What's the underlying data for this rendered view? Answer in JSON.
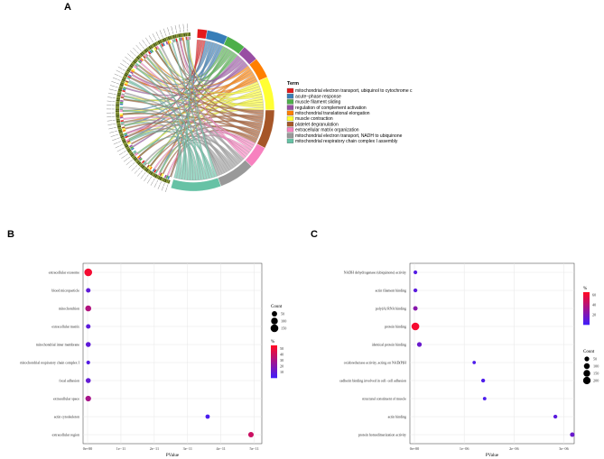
{
  "panel_labels": {
    "a": "A",
    "b": "B",
    "c": "C"
  },
  "chart_data": [
    {
      "panel": "A",
      "type": "chord",
      "legend_title": "Term",
      "terms": [
        {
          "label": "mitochondrial electron transport, ubiquinol to cytochrome c",
          "color": "#e41a1c"
        },
        {
          "label": "acute−phase response",
          "color": "#377eb8"
        },
        {
          "label": "muscle filament sliding",
          "color": "#4daf4a"
        },
        {
          "label": "regulation of complement activation",
          "color": "#984ea3"
        },
        {
          "label": "mitochondrial translational elongation",
          "color": "#ff7f00"
        },
        {
          "label": "muscle contraction",
          "color": "#ffff33"
        },
        {
          "label": "platelet degranulation",
          "color": "#a65628"
        },
        {
          "label": "extracellular matrix organization",
          "color": "#f781bf"
        },
        {
          "label": "mitochondrial electron transport, NADH to ubiquinone",
          "color": "#999999"
        },
        {
          "label": "mitochondrial respiratory chain complex I assembly",
          "color": "#66c2a5"
        }
      ]
    },
    {
      "panel": "B",
      "type": "scatter",
      "xlabel": "PValue",
      "x_ticks": [
        "0e+00",
        "1e−11",
        "2e−11",
        "3e−11",
        "4e−11",
        "5e−11"
      ],
      "xlim": [
        0,
        5.2e-11
      ],
      "categories": [
        "extracellular exosome",
        "blood microparticle",
        "mitochondrion",
        "extracellular matrix",
        "mitochondrial inner membrane",
        "mitochondrial respiratory chain complex I",
        "focal adhesion",
        "extracellular space",
        "actin cytoskeleton",
        "extracellular region"
      ],
      "pvalues": [
        2e-13,
        2e-13,
        2e-13,
        2e-13,
        2e-13,
        2e-13,
        2e-13,
        2e-13,
        3.6e-11,
        4.9e-11
      ],
      "counts": [
        150,
        30,
        70,
        30,
        40,
        15,
        40,
        60,
        25,
        55
      ],
      "percent": [
        52,
        10,
        33,
        9,
        10,
        7,
        11,
        30,
        4,
        40
      ],
      "size_legend": {
        "title": "Count",
        "values": [
          "50",
          "100",
          "150"
        ]
      },
      "color_legend": {
        "title": "%",
        "values": [
          "50",
          "40",
          "30",
          "20",
          "10"
        ]
      }
    },
    {
      "panel": "C",
      "type": "scatter",
      "xlabel": "PValue",
      "x_ticks": [
        "0e+00",
        "1e−06",
        "2e−06",
        "3e−06"
      ],
      "xlim": [
        0,
        3.2e-06
      ],
      "categories": [
        "NADH dehydrogenase (ubiquinone) activity",
        "actin filament binding",
        "poly(A) RNA binding",
        "protein binding",
        "identical protein binding",
        "oxidoreductase activity, acting on NAD(P)H",
        "cadherin binding involved in cell−cell adhesion",
        "structural constituent of muscle",
        "actin binding",
        "protein homodimerization activity"
      ],
      "pvalues": [
        2e-08,
        2e-08,
        2e-08,
        2e-08,
        1e-07,
        1.2e-06,
        1.38e-06,
        1.41e-06,
        2.83e-06,
        3.17e-06
      ],
      "counts": [
        20,
        25,
        40,
        220,
        50,
        12,
        25,
        15,
        25,
        45
      ],
      "percent": [
        8,
        10,
        25,
        62,
        15,
        6,
        6,
        5,
        10,
        15
      ],
      "size_legend": {
        "title": "Count",
        "values": [
          "50",
          "100",
          "150",
          "200"
        ]
      },
      "color_legend": {
        "title": "%",
        "values": [
          "60",
          "40",
          "20"
        ]
      }
    }
  ]
}
